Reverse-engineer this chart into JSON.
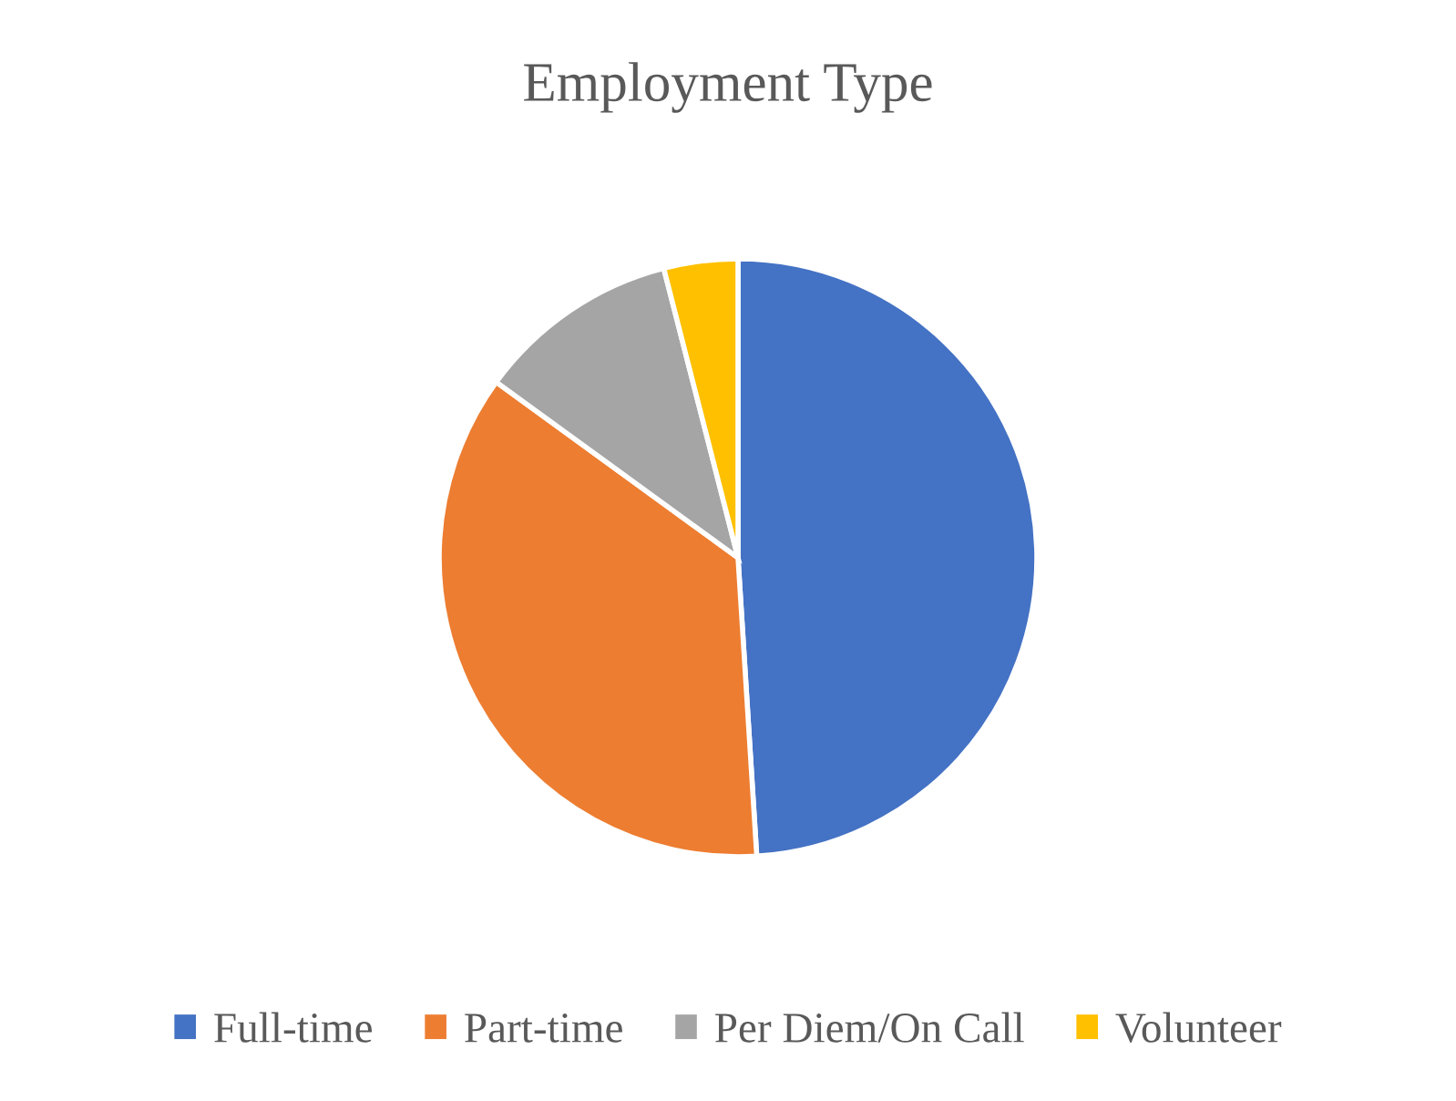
{
  "chart_data": {
    "type": "pie",
    "title": "Employment Type",
    "categories": [
      "Full-time",
      "Part-time",
      "Per Diem/On Call",
      "Volunteer"
    ],
    "values": [
      49,
      36,
      11,
      4
    ],
    "colors": [
      "#4472c4",
      "#ed7d31",
      "#a5a5a5",
      "#ffc000"
    ],
    "legend": "bottom"
  }
}
